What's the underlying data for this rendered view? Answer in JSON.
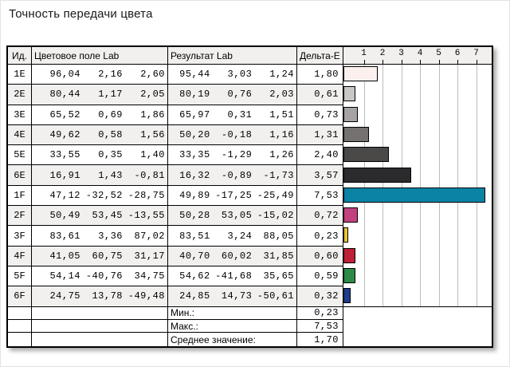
{
  "title": "Точность передачи цвета",
  "table": {
    "headers": {
      "id": "Ид.",
      "source": "Цветовое поле Lab",
      "result": "Результат Lab",
      "delta": "Дельта-E"
    },
    "rows": [
      {
        "id": "1E",
        "source": [
          "96,04",
          "2,16",
          "2,60"
        ],
        "result": [
          "95,44",
          "3,03",
          "1,24"
        ],
        "delta": "1,80",
        "delta_value": 1.8,
        "bar_color": "#fbf0ee"
      },
      {
        "id": "2E",
        "source": [
          "80,44",
          "1,17",
          "2,05"
        ],
        "result": [
          "80,19",
          "0,76",
          "2,03"
        ],
        "delta": "0,61",
        "delta_value": 0.61,
        "bar_color": "#c9c6c5"
      },
      {
        "id": "3E",
        "source": [
          "65,52",
          "0,69",
          "1,86"
        ],
        "result": [
          "65,97",
          "0,31",
          "1,51"
        ],
        "delta": "0,73",
        "delta_value": 0.73,
        "bar_color": "#a6a3a2"
      },
      {
        "id": "4E",
        "source": [
          "49,62",
          "0,58",
          "1,56"
        ],
        "result": [
          "50,20",
          "-0,18",
          "1,16"
        ],
        "delta": "1,31",
        "delta_value": 1.31,
        "bar_color": "#747170"
      },
      {
        "id": "5E",
        "source": [
          "33,55",
          "0,35",
          "1,40"
        ],
        "result": [
          "33,35",
          "-1,29",
          "1,26"
        ],
        "delta": "2,40",
        "delta_value": 2.4,
        "bar_color": "#4b4948"
      },
      {
        "id": "6E",
        "source": [
          "16,91",
          "1,43",
          "-0,81"
        ],
        "result": [
          "16,32",
          "-0,89",
          "-1,73"
        ],
        "delta": "3,57",
        "delta_value": 3.57,
        "bar_color": "#2b2a2d"
      },
      {
        "id": "1F",
        "source": [
          "47,12",
          "-32,52",
          "-28,75"
        ],
        "result": [
          "49,89",
          "-17,25",
          "-25,49"
        ],
        "delta": "7,53",
        "delta_value": 7.53,
        "bar_color": "#0a83a5"
      },
      {
        "id": "2F",
        "source": [
          "50,49",
          "53,45",
          "-13,55"
        ],
        "result": [
          "50,28",
          "53,05",
          "-15,02"
        ],
        "delta": "0,72",
        "delta_value": 0.72,
        "bar_color": "#c2417f"
      },
      {
        "id": "3F",
        "source": [
          "83,61",
          "3,36",
          "87,02"
        ],
        "result": [
          "83,51",
          "3,24",
          "88,05"
        ],
        "delta": "0,23",
        "delta_value": 0.23,
        "bar_color": "#e9c430"
      },
      {
        "id": "4F",
        "source": [
          "41,05",
          "60,75",
          "31,17"
        ],
        "result": [
          "40,70",
          "60,02",
          "31,85"
        ],
        "delta": "0,60",
        "delta_value": 0.6,
        "bar_color": "#c01f38"
      },
      {
        "id": "5F",
        "source": [
          "54,14",
          "-40,76",
          "34,75"
        ],
        "result": [
          "54,62",
          "-41,68",
          "35,65"
        ],
        "delta": "0,59",
        "delta_value": 0.59,
        "bar_color": "#2e8b47"
      },
      {
        "id": "6F",
        "source": [
          "24,75",
          "13,78",
          "-49,48"
        ],
        "result": [
          "24,85",
          "14,73",
          "-50,61"
        ],
        "delta": "0,32",
        "delta_value": 0.32,
        "bar_color": "#1e3d8f"
      }
    ],
    "summary": [
      {
        "label": "Мин.:",
        "value": "0,23"
      },
      {
        "label": "Макс.:",
        "value": "7,53"
      },
      {
        "label": "Среднее значение:",
        "value": "1,70"
      }
    ]
  },
  "chart_data": {
    "type": "bar",
    "orientation": "horizontal",
    "title": "Точность передачи цвета",
    "categories": [
      "1E",
      "2E",
      "3E",
      "4E",
      "5E",
      "6E",
      "1F",
      "2F",
      "3F",
      "4F",
      "5F",
      "6F"
    ],
    "values": [
      1.8,
      0.61,
      0.73,
      1.31,
      2.4,
      3.57,
      7.53,
      0.72,
      0.23,
      0.6,
      0.59,
      0.32
    ],
    "bar_colors": [
      "#fbf0ee",
      "#c9c6c5",
      "#a6a3a2",
      "#747170",
      "#4b4948",
      "#2b2a2d",
      "#0a83a5",
      "#c2417f",
      "#e9c430",
      "#c01f38",
      "#2e8b47",
      "#1e3d8f"
    ],
    "xlabel": "Дельта-E",
    "ylabel": "Ид.",
    "axis_ticks": [
      1,
      2,
      3,
      4,
      5,
      6,
      7
    ],
    "xlim": [
      0,
      8
    ],
    "grid": true,
    "gridline_color": "#bcbcbc",
    "min": 0.23,
    "max": 7.53,
    "mean": 1.7
  }
}
